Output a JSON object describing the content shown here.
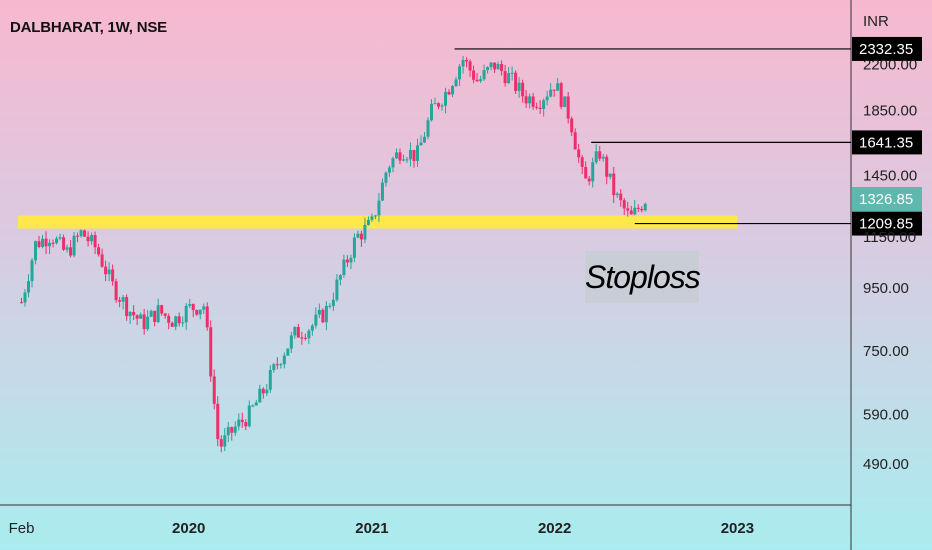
{
  "header": {
    "symbol": "DALBHARAT, 1W, NSE"
  },
  "chart_data": {
    "type": "candlestick",
    "currency": "INR",
    "scale": "log",
    "ylim": [
      420,
      2700
    ],
    "y_ticks": [
      {
        "value": 2200.0,
        "label": "2200.00"
      },
      {
        "value": 1850,
        "label": "1850.00"
      },
      {
        "value": 1450,
        "label": "1450.00"
      },
      {
        "value": 1150.0,
        "label": "1150.00"
      },
      {
        "value": 950,
        "label": "950.00"
      },
      {
        "value": 750,
        "label": "750.00"
      },
      {
        "value": 590,
        "label": "590.00"
      },
      {
        "value": 490,
        "label": "490.00"
      }
    ],
    "x_ticks": [
      {
        "label": "Feb",
        "date": "2019-02-01",
        "major": false
      },
      {
        "label": "2020",
        "date": "2020-01-01",
        "major": true
      },
      {
        "label": "2021",
        "date": "2021-01-01",
        "major": true
      },
      {
        "label": "2022",
        "date": "2022-01-01",
        "major": true
      },
      {
        "label": "2023",
        "date": "2023-01-01",
        "major": true
      }
    ],
    "x_range": [
      "2019-01-25",
      "2023-07-01"
    ],
    "colors": {
      "up": "#26a69a",
      "down": "#ef2d6a",
      "support_zone": "#ffe84a"
    },
    "closes": [
      {
        "date": "2019-02-01",
        "close": 900
      },
      {
        "date": "2019-03-01",
        "close": 1120
      },
      {
        "date": "2019-04-01",
        "close": 1160
      },
      {
        "date": "2019-05-01",
        "close": 1080
      },
      {
        "date": "2019-06-01",
        "close": 1170
      },
      {
        "date": "2019-07-01",
        "close": 1100
      },
      {
        "date": "2019-08-01",
        "close": 960
      },
      {
        "date": "2019-09-01",
        "close": 880
      },
      {
        "date": "2019-10-01",
        "close": 830
      },
      {
        "date": "2019-11-01",
        "close": 870
      },
      {
        "date": "2019-12-01",
        "close": 840
      },
      {
        "date": "2020-01-01",
        "close": 880
      },
      {
        "date": "2020-02-01",
        "close": 890
      },
      {
        "date": "2020-03-01",
        "close": 520
      },
      {
        "date": "2020-04-01",
        "close": 560
      },
      {
        "date": "2020-05-01",
        "close": 590
      },
      {
        "date": "2020-06-01",
        "close": 650
      },
      {
        "date": "2020-07-01",
        "close": 730
      },
      {
        "date": "2020-08-01",
        "close": 800
      },
      {
        "date": "2020-09-01",
        "close": 820
      },
      {
        "date": "2020-10-01",
        "close": 870
      },
      {
        "date": "2020-11-01",
        "close": 1000
      },
      {
        "date": "2020-12-01",
        "close": 1150
      },
      {
        "date": "2021-01-01",
        "close": 1210
      },
      {
        "date": "2021-02-01",
        "close": 1500
      },
      {
        "date": "2021-03-01",
        "close": 1600
      },
      {
        "date": "2021-04-01",
        "close": 1560
      },
      {
        "date": "2021-05-01",
        "close": 1850
      },
      {
        "date": "2021-06-01",
        "close": 2000
      },
      {
        "date": "2021-07-01",
        "close": 2250
      },
      {
        "date": "2021-08-01",
        "close": 2060
      },
      {
        "date": "2021-09-01",
        "close": 2200
      },
      {
        "date": "2021-10-01",
        "close": 2100
      },
      {
        "date": "2021-11-01",
        "close": 1950
      },
      {
        "date": "2021-12-01",
        "close": 1920
      },
      {
        "date": "2022-01-01",
        "close": 2050
      },
      {
        "date": "2022-02-01",
        "close": 1800
      },
      {
        "date": "2022-03-01",
        "close": 1400
      },
      {
        "date": "2022-04-01",
        "close": 1580
      },
      {
        "date": "2022-05-01",
        "close": 1350
      },
      {
        "date": "2022-06-01",
        "close": 1230
      },
      {
        "date": "2022-07-01",
        "close": 1326.85
      }
    ],
    "levels": [
      {
        "label": "2332.35",
        "value": 2332.35,
        "from": "2021-06-15",
        "color": "#000000",
        "text_color": "#ffffff"
      },
      {
        "label": "1641.35",
        "value": 1641.35,
        "from": "2022-03-15",
        "color": "#000000",
        "text_color": "#ffffff"
      },
      {
        "label": "1326.85",
        "value": 1326.85,
        "from": null,
        "color": "#5fb7ad",
        "text_color": "#ffffff"
      },
      {
        "label": "1209.85",
        "value": 1209.85,
        "from": "2022-06-10",
        "color": "#000000",
        "text_color": "#ffffff"
      }
    ],
    "support_zone": {
      "from": "2019-01-25",
      "to": "2023-01-01",
      "value": 1209.85
    },
    "annotation": {
      "text": "Stoploss"
    }
  }
}
